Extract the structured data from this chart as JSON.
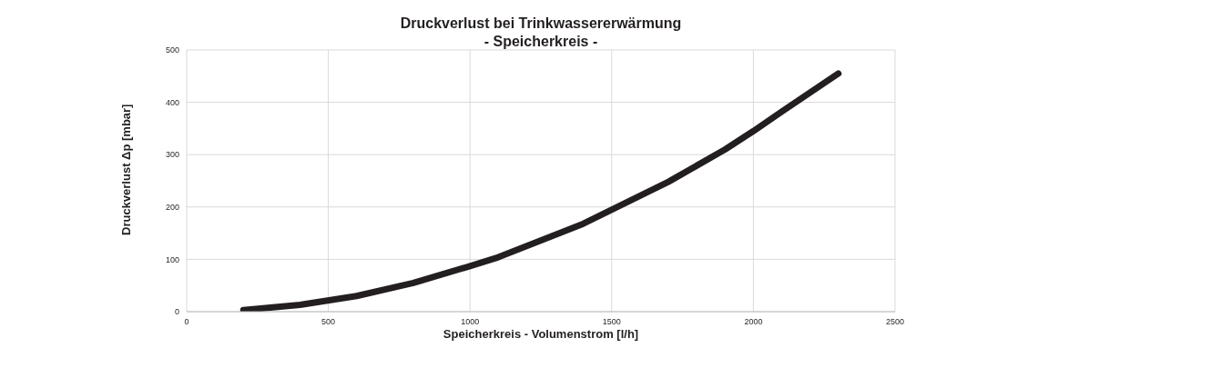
{
  "chart_data": {
    "type": "line",
    "title": "Druckverlust bei Trinkwassererwärmung",
    "subtitle": "- Speicherkreis -",
    "xlabel": "Speicherkreis - Volumenstrom [l/h]",
    "ylabel": "Druckverlust Δp [mbar]",
    "x": [
      200,
      400,
      600,
      800,
      1000,
      1100,
      1400,
      1700,
      1900,
      2000,
      2100,
      2300
    ],
    "series": [
      {
        "color": "#231f20",
        "values": [
          3,
          13,
          30,
          55,
          87,
          104,
          168,
          248,
          310,
          345,
          382,
          455
        ]
      }
    ],
    "xlim": [
      0,
      2500
    ],
    "xticks": [
      0,
      500,
      1000,
      1500,
      2000,
      2500
    ],
    "ylim": [
      0,
      500
    ],
    "yticks": [
      0,
      100,
      200,
      300,
      400,
      500
    ],
    "grid": true,
    "marker": "none",
    "line_style": "solid"
  }
}
